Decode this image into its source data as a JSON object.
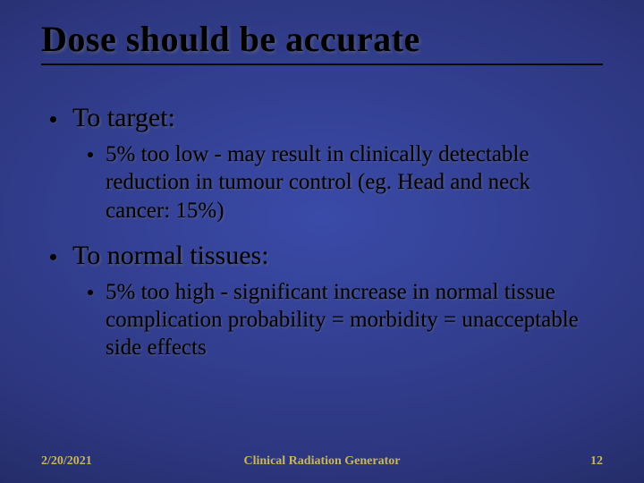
{
  "background": {
    "gradient_center": "#3a4aa8",
    "gradient_mid": "#2d3780",
    "gradient_outer": "#1e2456",
    "gradient_edge": "#141838"
  },
  "title": {
    "text": "Dose should be accurate",
    "fontsize": 40,
    "color": "#000000",
    "underline_color": "#000000",
    "shadow_color": "rgba(120,120,100,0.5)"
  },
  "bullets": [
    {
      "level": 1,
      "text": "To target:",
      "fontsize": 30,
      "color": "#000000"
    },
    {
      "level": 2,
      "text": "5% too low - may result in clinically detectable reduction in tumour control (eg. Head and neck cancer: 15%)",
      "fontsize": 25,
      "color": "#000000"
    },
    {
      "level": 1,
      "text": "To normal tissues:",
      "fontsize": 30,
      "color": "#000000"
    },
    {
      "level": 2,
      "text": "5% too high - significant increase in normal tissue complication probability = morbidity = unacceptable side effects",
      "fontsize": 25,
      "color": "#000000"
    }
  ],
  "footer": {
    "date": "2/20/2021",
    "title": "Clinical Radiation Generator",
    "page": "12",
    "fontsize": 14,
    "color": "#c9b657"
  },
  "bullet_marker": {
    "l1_size": 7,
    "l2_size": 6,
    "color": "#000000"
  }
}
